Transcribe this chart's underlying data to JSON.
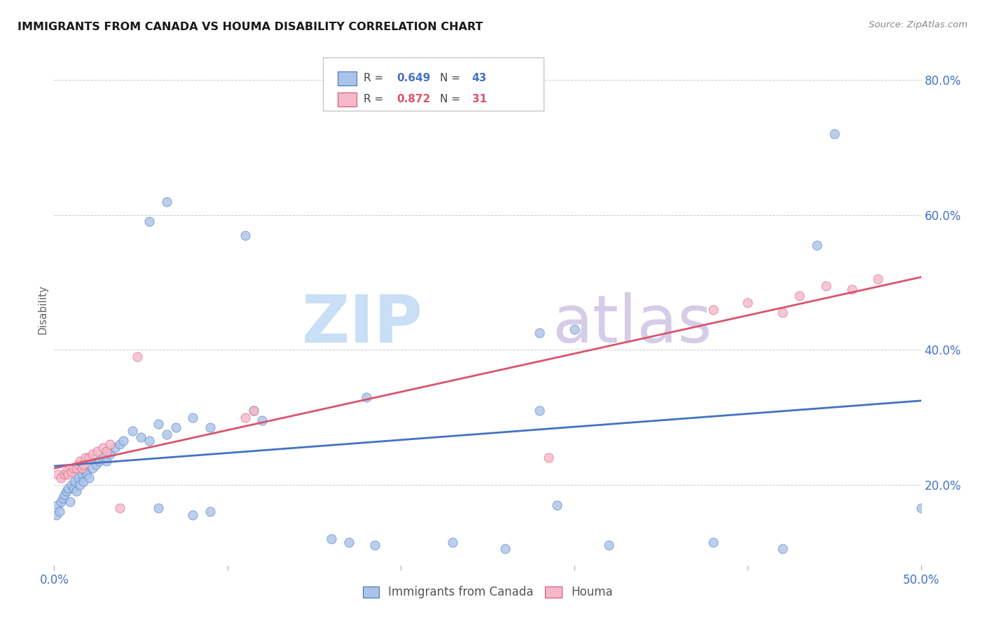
{
  "title": "IMMIGRANTS FROM CANADA VS HOUMA DISABILITY CORRELATION CHART",
  "source": "Source: ZipAtlas.com",
  "ylabel": "Disability",
  "legend1_r": "0.649",
  "legend1_n": "43",
  "legend2_r": "0.872",
  "legend2_n": "31",
  "blue_color": "#aac4e8",
  "pink_color": "#f5b8c8",
  "blue_line_color": "#4472c4",
  "pink_line_color": "#d9546e",
  "blue_scatter": [
    [
      0.001,
      0.155
    ],
    [
      0.002,
      0.17
    ],
    [
      0.003,
      0.16
    ],
    [
      0.004,
      0.175
    ],
    [
      0.005,
      0.18
    ],
    [
      0.006,
      0.185
    ],
    [
      0.007,
      0.19
    ],
    [
      0.008,
      0.195
    ],
    [
      0.009,
      0.175
    ],
    [
      0.01,
      0.2
    ],
    [
      0.011,
      0.195
    ],
    [
      0.012,
      0.205
    ],
    [
      0.013,
      0.19
    ],
    [
      0.014,
      0.21
    ],
    [
      0.015,
      0.2
    ],
    [
      0.016,
      0.215
    ],
    [
      0.017,
      0.205
    ],
    [
      0.018,
      0.22
    ],
    [
      0.019,
      0.215
    ],
    [
      0.02,
      0.21
    ],
    [
      0.022,
      0.225
    ],
    [
      0.024,
      0.23
    ],
    [
      0.026,
      0.235
    ],
    [
      0.028,
      0.24
    ],
    [
      0.03,
      0.235
    ],
    [
      0.032,
      0.245
    ],
    [
      0.035,
      0.255
    ],
    [
      0.038,
      0.26
    ],
    [
      0.04,
      0.265
    ],
    [
      0.045,
      0.28
    ],
    [
      0.05,
      0.27
    ],
    [
      0.055,
      0.265
    ],
    [
      0.06,
      0.29
    ],
    [
      0.065,
      0.275
    ],
    [
      0.07,
      0.285
    ],
    [
      0.08,
      0.3
    ],
    [
      0.09,
      0.285
    ],
    [
      0.115,
      0.31
    ],
    [
      0.12,
      0.295
    ],
    [
      0.18,
      0.33
    ],
    [
      0.28,
      0.425
    ],
    [
      0.3,
      0.43
    ],
    [
      0.44,
      0.555
    ]
  ],
  "blue_scatter_outliers": [
    [
      0.055,
      0.59
    ],
    [
      0.065,
      0.62
    ],
    [
      0.11,
      0.57
    ],
    [
      0.28,
      0.31
    ],
    [
      0.45,
      0.72
    ]
  ],
  "blue_scatter_low": [
    [
      0.06,
      0.165
    ],
    [
      0.08,
      0.155
    ],
    [
      0.09,
      0.16
    ],
    [
      0.16,
      0.12
    ],
    [
      0.17,
      0.115
    ],
    [
      0.185,
      0.11
    ],
    [
      0.23,
      0.115
    ],
    [
      0.26,
      0.105
    ],
    [
      0.32,
      0.11
    ],
    [
      0.38,
      0.115
    ],
    [
      0.42,
      0.105
    ],
    [
      0.29,
      0.17
    ],
    [
      0.5,
      0.165
    ]
  ],
  "pink_scatter": [
    [
      0.002,
      0.215
    ],
    [
      0.004,
      0.21
    ],
    [
      0.006,
      0.215
    ],
    [
      0.007,
      0.22
    ],
    [
      0.008,
      0.215
    ],
    [
      0.01,
      0.22
    ],
    [
      0.011,
      0.225
    ],
    [
      0.013,
      0.225
    ],
    [
      0.014,
      0.23
    ],
    [
      0.015,
      0.235
    ],
    [
      0.016,
      0.225
    ],
    [
      0.017,
      0.23
    ],
    [
      0.018,
      0.24
    ],
    [
      0.02,
      0.24
    ],
    [
      0.022,
      0.245
    ],
    [
      0.025,
      0.25
    ],
    [
      0.028,
      0.255
    ],
    [
      0.03,
      0.25
    ],
    [
      0.032,
      0.26
    ],
    [
      0.038,
      0.165
    ],
    [
      0.048,
      0.39
    ],
    [
      0.11,
      0.3
    ],
    [
      0.115,
      0.31
    ],
    [
      0.285,
      0.24
    ],
    [
      0.38,
      0.46
    ],
    [
      0.4,
      0.47
    ],
    [
      0.42,
      0.455
    ],
    [
      0.43,
      0.48
    ],
    [
      0.445,
      0.495
    ],
    [
      0.46,
      0.49
    ],
    [
      0.475,
      0.505
    ]
  ],
  "xlim": [
    0.0,
    0.5
  ],
  "ylim": [
    0.08,
    0.84
  ],
  "xticks": [
    0.0,
    0.1,
    0.2,
    0.3,
    0.4,
    0.5
  ],
  "yticks": [
    0.2,
    0.4,
    0.6,
    0.8
  ],
  "background_color": "#ffffff"
}
